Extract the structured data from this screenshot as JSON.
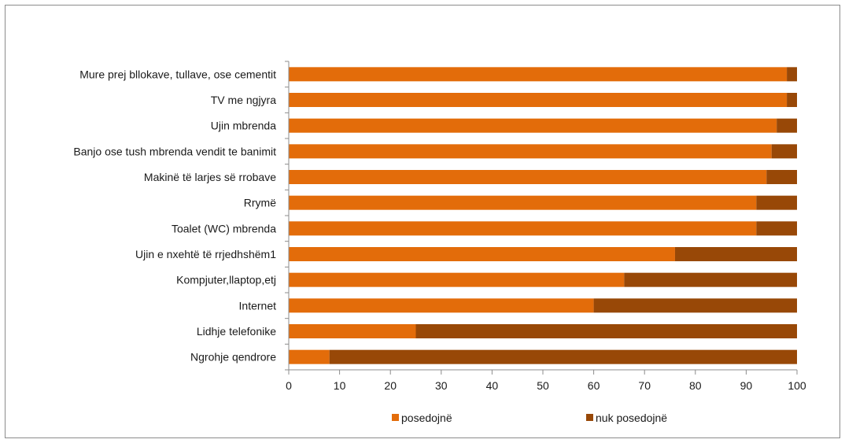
{
  "chart_data": {
    "type": "bar",
    "orientation": "horizontal",
    "stacked": true,
    "categories": [
      "Mure prej bllokave, tullave, ose cementit",
      "TV me ngjyra",
      "Ujin mbrenda",
      "Banjo ose tush mbrenda vendit te banimit",
      "Makinë të larjes së rrobave",
      "Rrymë",
      "Toalet (WC) mbrenda",
      "Ujin e nxehtë të rrjedhshëm1",
      "Kompjuter,llaptop,etj",
      "Internet",
      "Lidhje telefonike",
      "Ngrohje qendrore"
    ],
    "series": [
      {
        "name": "posedojnë",
        "color": "#E36C0A",
        "values": [
          98,
          98,
          96,
          95,
          94,
          92,
          92,
          76,
          66,
          60,
          25,
          8
        ]
      },
      {
        "name": "nuk posedojnë",
        "color": "#984807",
        "values": [
          2,
          2,
          4,
          5,
          6,
          8,
          8,
          24,
          34,
          40,
          75,
          92
        ]
      }
    ],
    "xlim": [
      0,
      100
    ],
    "xticks": [
      "0",
      "10",
      "20",
      "30",
      "40",
      "50",
      "60",
      "70",
      "80",
      "90",
      "100"
    ],
    "grid": false,
    "legend_position": "bottom"
  }
}
